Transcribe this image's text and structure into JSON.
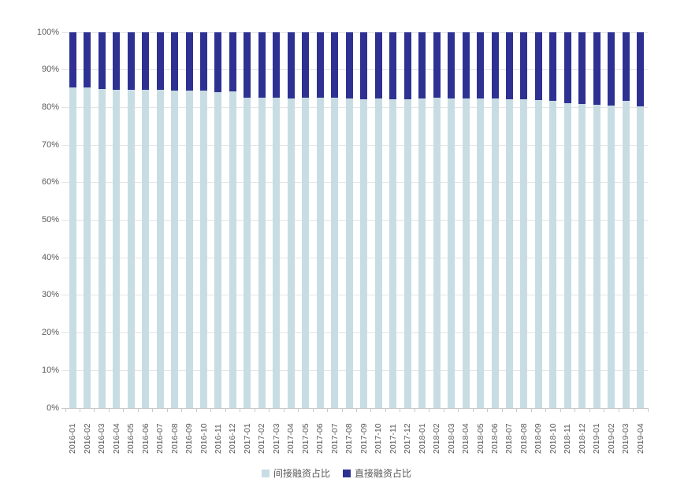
{
  "chart_data": {
    "type": "bar",
    "stacked": true,
    "stack_mode": "percent",
    "title": "",
    "xlabel": "",
    "ylabel": "",
    "ylim": [
      0,
      100
    ],
    "grid": true,
    "legend_position": "bottom",
    "y_ticks": [
      "0%",
      "10%",
      "20%",
      "30%",
      "40%",
      "50%",
      "60%",
      "70%",
      "80%",
      "90%",
      "100%"
    ],
    "categories": [
      "2016-01",
      "2016-02",
      "2016-03",
      "2016-04",
      "2016-05",
      "2016-06",
      "2016-07",
      "2016-08",
      "2016-09",
      "2016-10",
      "2016-11",
      "2016-12",
      "2017-01",
      "2017-02",
      "2017-03",
      "2017-04",
      "2017-05",
      "2017-06",
      "2017-07",
      "2017-08",
      "2017-09",
      "2017-10",
      "2017-11",
      "2017-12",
      "2018-01",
      "2018-02",
      "2018-03",
      "2018-04",
      "2018-05",
      "2018-06",
      "2018-07",
      "2018-08",
      "2018-09",
      "2018-10",
      "2018-11",
      "2018-12",
      "2019-01",
      "2019-02",
      "2019-03",
      "2019-04"
    ],
    "series": [
      {
        "name": "间接融资占比",
        "color": "#c7dde3",
        "values": [
          85.3,
          85.3,
          85.0,
          84.8,
          84.8,
          84.7,
          84.7,
          84.5,
          84.5,
          84.4,
          84.0,
          84.2,
          82.6,
          82.5,
          82.5,
          82.4,
          82.6,
          82.6,
          82.6,
          82.4,
          82.2,
          82.3,
          82.2,
          82.2,
          82.4,
          82.5,
          82.4,
          82.4,
          82.3,
          82.4,
          82.2,
          82.2,
          82.0,
          81.7,
          81.2,
          80.9,
          80.8,
          80.6,
          81.8,
          80.3
        ]
      },
      {
        "name": "直接融资占比",
        "color": "#2e3192",
        "values": [
          14.7,
          14.7,
          15.0,
          15.2,
          15.2,
          15.3,
          15.3,
          15.5,
          15.5,
          15.6,
          16.0,
          15.8,
          17.4,
          17.5,
          17.5,
          17.6,
          17.4,
          17.4,
          17.4,
          17.6,
          17.8,
          17.7,
          17.8,
          17.8,
          17.6,
          17.5,
          17.6,
          17.6,
          17.7,
          17.6,
          17.8,
          17.8,
          18.0,
          18.3,
          18.8,
          19.1,
          19.2,
          19.4,
          18.2,
          19.7
        ]
      }
    ]
  },
  "colors": {
    "gridline": "#e4e4e4",
    "axis_line": "#c9c9c9",
    "axis_text": "#595959",
    "background": "#ffffff"
  }
}
